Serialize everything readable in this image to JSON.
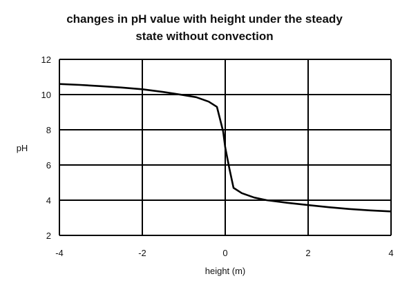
{
  "chart_data": {
    "type": "line",
    "title_lines": [
      "changes in pH value with height under the steady",
      "state without convection"
    ],
    "xlabel": "height (m)",
    "ylabel": "pH",
    "xlim": [
      -4,
      4
    ],
    "ylim": [
      2,
      12
    ],
    "x_ticks": [
      -4,
      -2,
      0,
      2,
      4
    ],
    "y_ticks": [
      2,
      4,
      6,
      8,
      10,
      12
    ],
    "grid": true,
    "series": [
      {
        "color": "#000000",
        "x": [
          -4,
          -3.5,
          -3,
          -2.5,
          -2,
          -1.5,
          -1,
          -0.7,
          -0.4,
          -0.2,
          -0.05,
          0,
          0.1,
          0.2,
          0.4,
          0.7,
          1,
          1.5,
          2,
          2.5,
          3,
          3.5,
          4
        ],
        "y": [
          10.6,
          10.55,
          10.48,
          10.4,
          10.3,
          10.15,
          9.97,
          9.85,
          9.6,
          9.3,
          7.9,
          7.0,
          5.8,
          4.7,
          4.4,
          4.15,
          4.0,
          3.85,
          3.72,
          3.6,
          3.5,
          3.42,
          3.36
        ]
      }
    ]
  }
}
